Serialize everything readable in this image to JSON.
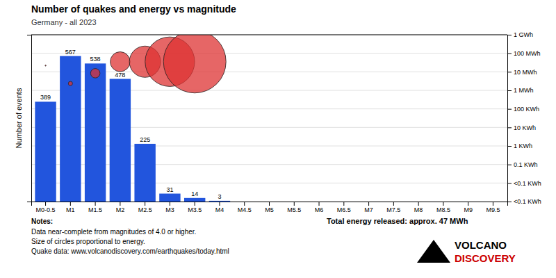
{
  "chart_data": {
    "type": "bar",
    "title": "Number of quakes and energy vs magnitude",
    "subtitle": "Germany - all 2023",
    "y_label": "Number of events",
    "categories": [
      "M0-0.5",
      "M1",
      "M1.5",
      "M2",
      "M2.5",
      "M3",
      "M3.5",
      "M4",
      "M4.5",
      "M5",
      "M5.5",
      "M6",
      "M6.5",
      "M7",
      "M7.5",
      "M8",
      "M8.5",
      "M9",
      "M9.5"
    ],
    "series": [
      {
        "type": "bar",
        "color": "#2255dd",
        "values": [
          389,
          567,
          538,
          478,
          225,
          31,
          14,
          3,
          0,
          0,
          0,
          0,
          0,
          0,
          0,
          0,
          0,
          0,
          0
        ],
        "value_labels": [
          "389",
          "567",
          "538",
          "478",
          "225",
          "31",
          "14",
          "3",
          null,
          null,
          null,
          null,
          null,
          null,
          null,
          null,
          null,
          null,
          null
        ]
      },
      {
        "type": "scatter",
        "color": "#dd3333",
        "x": [
          "M0-0.5",
          "M1",
          "M1.5",
          "M2",
          "M2.5",
          "M3",
          "M3.5"
        ],
        "values": [
          530,
          460,
          500,
          545,
          545,
          545,
          545
        ],
        "sizes": [
          2,
          8,
          18,
          38,
          60,
          95,
          120
        ]
      }
    ],
    "data_labels": true,
    "ylim": [
      0,
      650
    ],
    "yticks": [],
    "y2lim": [
      0,
      1
    ],
    "y2ticks": [
      {
        "value": 0,
        "label": "<0.1 KWh"
      },
      {
        "value": 0.1111111111111111,
        "label": "<0.1 KWh"
      },
      {
        "value": 0.2222222222222222,
        "label": "0.1 KWh"
      },
      {
        "value": 0.3333333333333333,
        "label": "1 KWh"
      },
      {
        "value": 0.4444444444444444,
        "label": "10 KWh"
      },
      {
        "value": 0.5555555555555556,
        "label": "100 KWh"
      },
      {
        "value": 0.6666666666666666,
        "label": "1 MWh"
      },
      {
        "value": 0.7777777777777778,
        "label": "10 MWh"
      },
      {
        "value": 0.8888888888888888,
        "label": "100 MWh"
      },
      {
        "value": 1,
        "label": "1 GWh"
      }
    ],
    "grid": true,
    "annotations": [
      "Notes:",
      "Data near-complete from magnitudes of 4.0 or higher.",
      "Size of circles proportional to energy.",
      "Quake data: www.volcanodiscovery.com/earthquakes/today.html",
      "Total energy released: approx. 47 MWh",
      "VOLCANO",
      "DISCOVERY"
    ]
  }
}
